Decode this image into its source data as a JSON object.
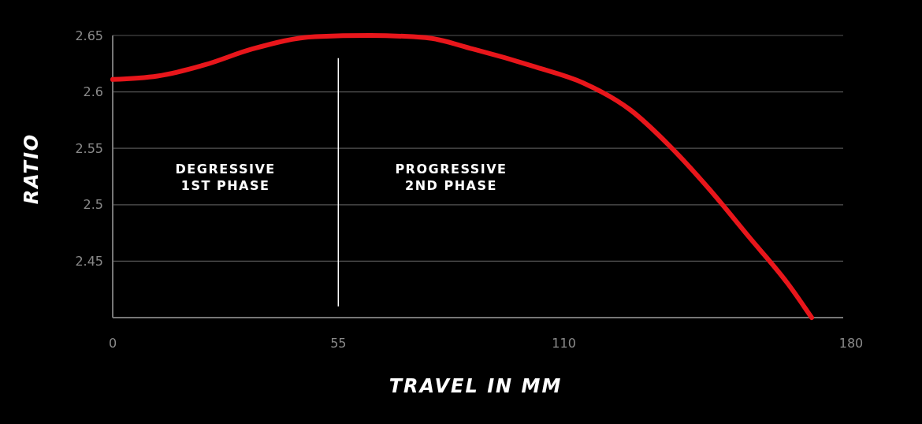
{
  "chart_data": {
    "type": "line",
    "xlabel": "TRAVEL IN MM",
    "ylabel": "RATIO",
    "x": [
      0,
      10.9,
      22.5,
      34,
      49.4,
      62.8,
      76.3,
      87.8,
      103.2,
      114.7,
      126.2,
      135.8,
      145.4,
      155,
      164.6,
      170.4
    ],
    "series": [
      {
        "color": "#e8161b",
        "values": [
          2.611,
          2.614,
          2.624,
          2.638,
          2.649,
          2.65,
          2.648,
          2.638,
          2.622,
          2.608,
          2.584,
          2.552,
          2.514,
          2.472,
          2.43,
          2.4
        ]
      }
    ],
    "xlim": [
      0,
      180
    ],
    "xticks": [
      0,
      55,
      110,
      180
    ],
    "ylim": [
      2.4,
      2.65
    ],
    "yticks": [
      2.45,
      2.5,
      2.55,
      2.6,
      2.65
    ],
    "grid": "y",
    "marker": "none",
    "line_style": "solid",
    "ref_lines": [
      {
        "axis": "x",
        "value": 55,
        "color": "#ffffff",
        "line_style": "solid"
      }
    ],
    "annotations": [
      "DEGRESSIVE\n1ST PHASE",
      "PROGRESSIVE\n2ND PHASE"
    ]
  }
}
